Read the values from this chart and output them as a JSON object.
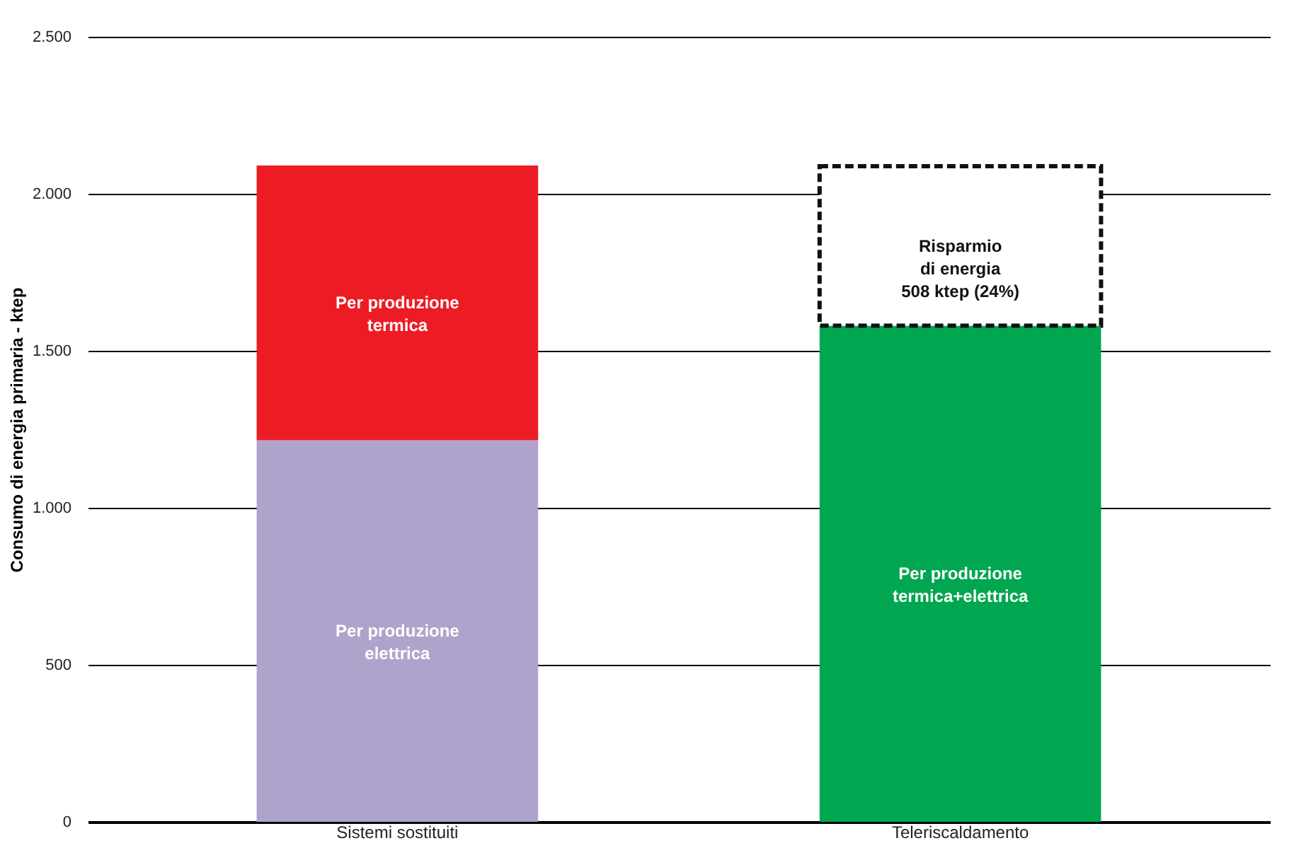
{
  "chart_data": {
    "type": "bar",
    "stacked": true,
    "ylabel": "Consumo di energia primaria - ktep",
    "categories": [
      "Sistemi sostituiti",
      "Teleriscaldamento"
    ],
    "series": [
      {
        "name": "Per produzione\nelettrica",
        "color": "#afa3cb",
        "values": [
          1215,
          null
        ]
      },
      {
        "name": "Per produzione\ntermica",
        "color": "#ed1c24",
        "values": [
          875,
          null
        ]
      },
      {
        "name": "Per produzione\ntermica+elettrica",
        "color": "#00a650",
        "values": [
          null,
          1580
        ]
      },
      {
        "name": "Risparmio\ndi energia\n508 ktep (24%)",
        "color": "#ffffff",
        "line_style": "dashed",
        "values": [
          null,
          508
        ]
      }
    ],
    "ylim": [
      0,
      2500
    ],
    "yticks": [
      {
        "value": 0,
        "label": "0"
      },
      {
        "value": 500,
        "label": "500"
      },
      {
        "value": 1000,
        "label": "1.000"
      },
      {
        "value": 1500,
        "label": "1.500"
      },
      {
        "value": 2000,
        "label": "2.000"
      },
      {
        "value": 2500,
        "label": "2.500"
      }
    ],
    "grid": "y",
    "legend": false
  }
}
